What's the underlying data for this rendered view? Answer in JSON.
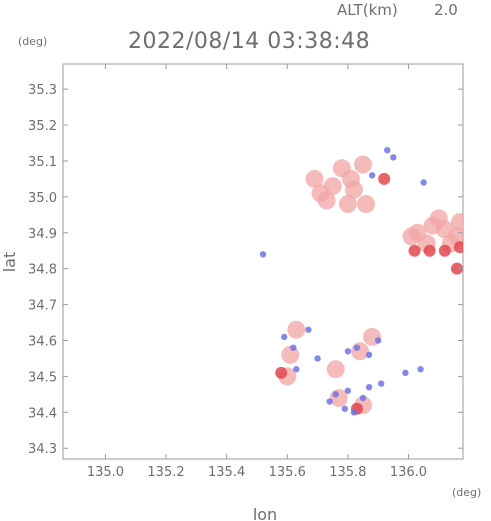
{
  "header": {
    "alt_label": "ALT(km)",
    "alt_value": "2.0",
    "timestamp": "2022/08/14 03:38:48",
    "lat_unit": "(deg)",
    "lon_unit": "(deg)"
  },
  "chart_data": {
    "type": "scatter",
    "title": "2022/08/14 03:38:48",
    "subtitle": "ALT(km) 2.0",
    "xlabel": "lon",
    "ylabel": "lat",
    "xlim": [
      134.86,
      136.18
    ],
    "ylim": [
      34.27,
      35.37
    ],
    "xticks": [
      "135.0",
      "135.2",
      "135.4",
      "135.6",
      "135.8",
      "136.0"
    ],
    "yticks": [
      "34.3",
      "34.4",
      "34.5",
      "34.6",
      "34.7",
      "34.8",
      "34.9",
      "35.0",
      "35.1",
      "35.2",
      "35.3"
    ],
    "grid": false,
    "colors": {
      "approaching": "#6f73e6",
      "receding": "#f2a4a4",
      "strong_receding": "#e0484f",
      "frame": "#9a9a9a"
    },
    "series": [
      {
        "polarity": "receding",
        "points": [
          [
            135.78,
            35.08
          ],
          [
            135.81,
            35.05
          ],
          [
            135.82,
            35.02
          ],
          [
            135.75,
            35.03
          ],
          [
            135.73,
            34.99
          ],
          [
            135.85,
            35.09
          ],
          [
            135.69,
            35.05
          ],
          [
            135.8,
            34.98
          ],
          [
            135.86,
            34.98
          ],
          [
            135.71,
            35.01
          ],
          [
            136.08,
            34.92
          ],
          [
            136.03,
            34.9
          ],
          [
            136.12,
            34.91
          ],
          [
            136.16,
            34.89
          ],
          [
            136.06,
            34.87
          ],
          [
            136.01,
            34.89
          ],
          [
            136.14,
            34.87
          ],
          [
            136.1,
            34.94
          ],
          [
            136.17,
            34.93
          ],
          [
            135.63,
            34.63
          ],
          [
            135.61,
            34.56
          ],
          [
            135.85,
            34.42
          ],
          [
            135.77,
            34.44
          ],
          [
            135.84,
            34.57
          ],
          [
            135.76,
            34.52
          ],
          [
            135.6,
            34.5
          ],
          [
            135.88,
            34.61
          ]
        ]
      },
      {
        "polarity": "strong_receding",
        "points": [
          [
            136.07,
            34.85
          ],
          [
            136.12,
            34.85
          ],
          [
            136.17,
            34.86
          ],
          [
            136.02,
            34.85
          ],
          [
            136.16,
            34.8
          ],
          [
            135.58,
            34.51
          ],
          [
            135.83,
            34.41
          ],
          [
            135.92,
            35.05
          ]
        ]
      },
      {
        "polarity": "approaching",
        "points": [
          [
            135.93,
            35.13
          ],
          [
            135.95,
            35.11
          ],
          [
            135.88,
            35.06
          ],
          [
            136.05,
            35.04
          ],
          [
            135.59,
            34.61
          ],
          [
            135.62,
            34.58
          ],
          [
            135.67,
            34.63
          ],
          [
            135.63,
            34.52
          ],
          [
            135.8,
            34.57
          ],
          [
            135.83,
            34.58
          ],
          [
            135.87,
            34.56
          ],
          [
            135.9,
            34.6
          ],
          [
            135.8,
            34.46
          ],
          [
            135.87,
            34.47
          ],
          [
            135.91,
            34.48
          ],
          [
            135.85,
            34.44
          ],
          [
            135.76,
            34.45
          ],
          [
            135.74,
            34.43
          ],
          [
            135.79,
            34.41
          ],
          [
            135.82,
            34.4
          ],
          [
            135.99,
            34.51
          ],
          [
            136.04,
            34.52
          ],
          [
            135.7,
            34.55
          ],
          [
            135.52,
            34.84
          ]
        ]
      }
    ]
  }
}
